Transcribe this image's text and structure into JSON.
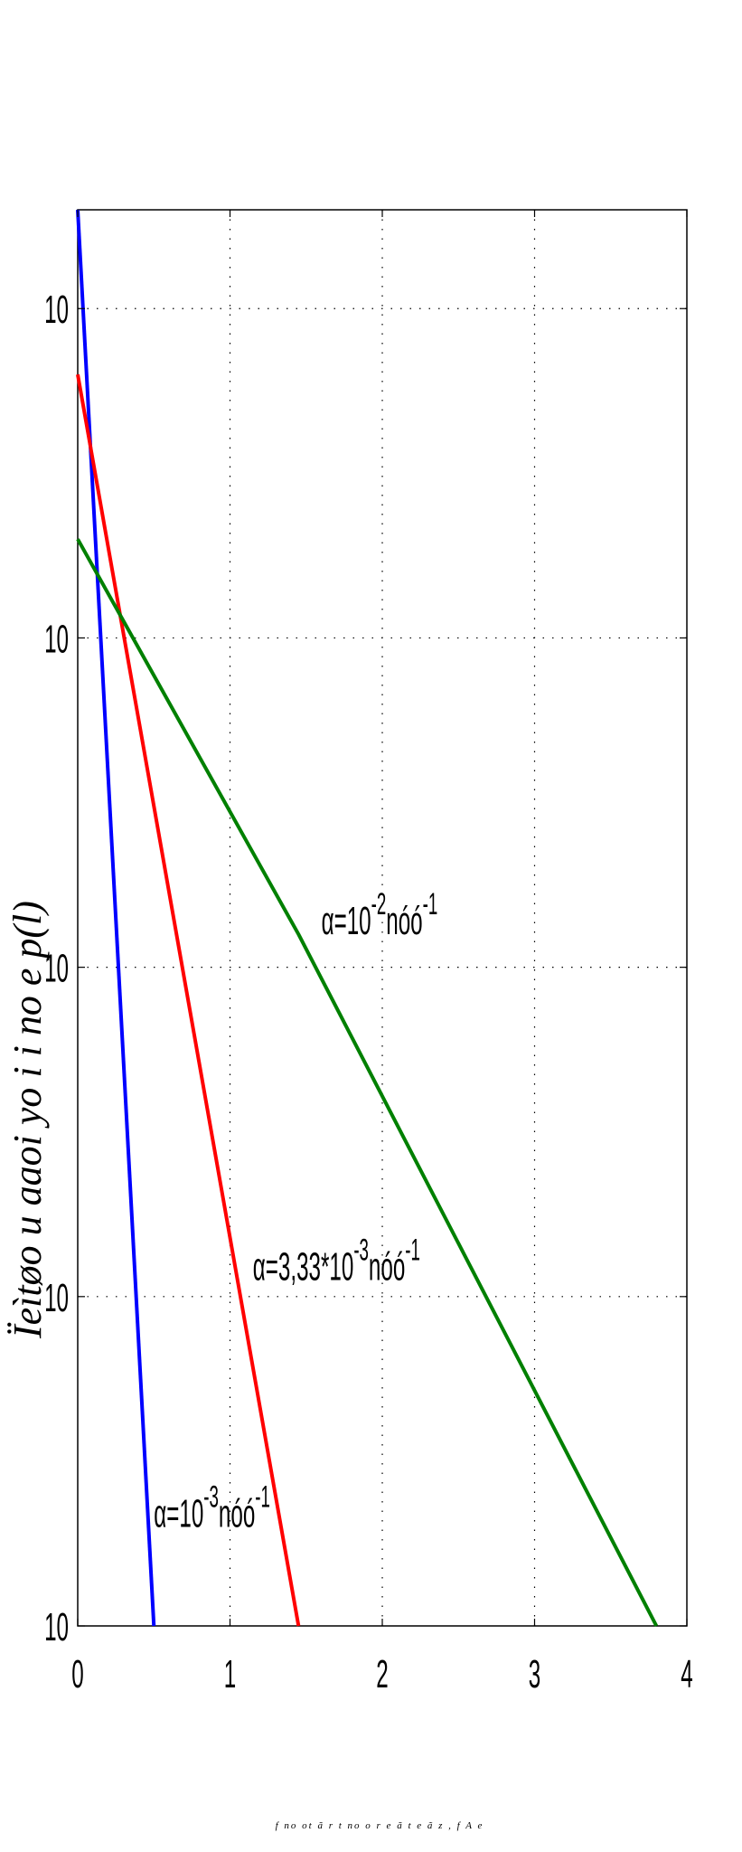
{
  "chart_data": {
    "type": "line",
    "xlabel": "f no ot ã r t no o r e ã t e ã z , f  A e",
    "ylabel": "Ïeìtøo u aaoi yo i i no e p(l)",
    "xlim": [
      0,
      4
    ],
    "ylim_log10": [
      0,
      4.3
    ],
    "x_ticks": [
      {
        "value": 0,
        "label": "0"
      },
      {
        "value": 1,
        "label": "1"
      },
      {
        "value": 2,
        "label": "2"
      },
      {
        "value": 3,
        "label": "3"
      },
      {
        "value": 4,
        "label": "4"
      }
    ],
    "y_ticks": [
      {
        "value_log10": 0,
        "label": "10"
      },
      {
        "value_log10": 1,
        "label": "10"
      },
      {
        "value_log10": 2,
        "label": "10"
      },
      {
        "value_log10": 3,
        "label": "10"
      },
      {
        "value_log10": 4,
        "label": "10"
      }
    ],
    "grid": true,
    "series": [
      {
        "name": "α=10-3 nóó-1",
        "color": "#0000ff",
        "x": [
          0,
          0.5
        ],
        "y_log10": [
          4.3,
          0
        ]
      },
      {
        "name": "α=3,33*10-3 nóó-1",
        "color": "#ff0000",
        "x": [
          0,
          1.45
        ],
        "y_log10": [
          3.8,
          0
        ]
      },
      {
        "name": "α=10-2 nóó-1",
        "color": "#008000",
        "x": [
          0,
          1.45,
          3.8
        ],
        "y_log10": [
          3.3,
          2.1,
          0
        ]
      }
    ],
    "annotations": [
      {
        "key": "green",
        "base": "α=10",
        "sup1": "-2",
        "unit": "nóó",
        "sup2": "-1",
        "x": 1.6,
        "y_log10": 2.1
      },
      {
        "key": "red",
        "base": "α=3,33*10",
        "sup1": "-3",
        "unit": "nóó",
        "sup2": "-1",
        "x": 1.15,
        "y_log10": 1.05
      },
      {
        "key": "blue",
        "base": "α=10",
        "sup1": "-3",
        "unit": "nóó",
        "sup2": "-1",
        "x": 0.5,
        "y_log10": 0.3
      }
    ]
  }
}
